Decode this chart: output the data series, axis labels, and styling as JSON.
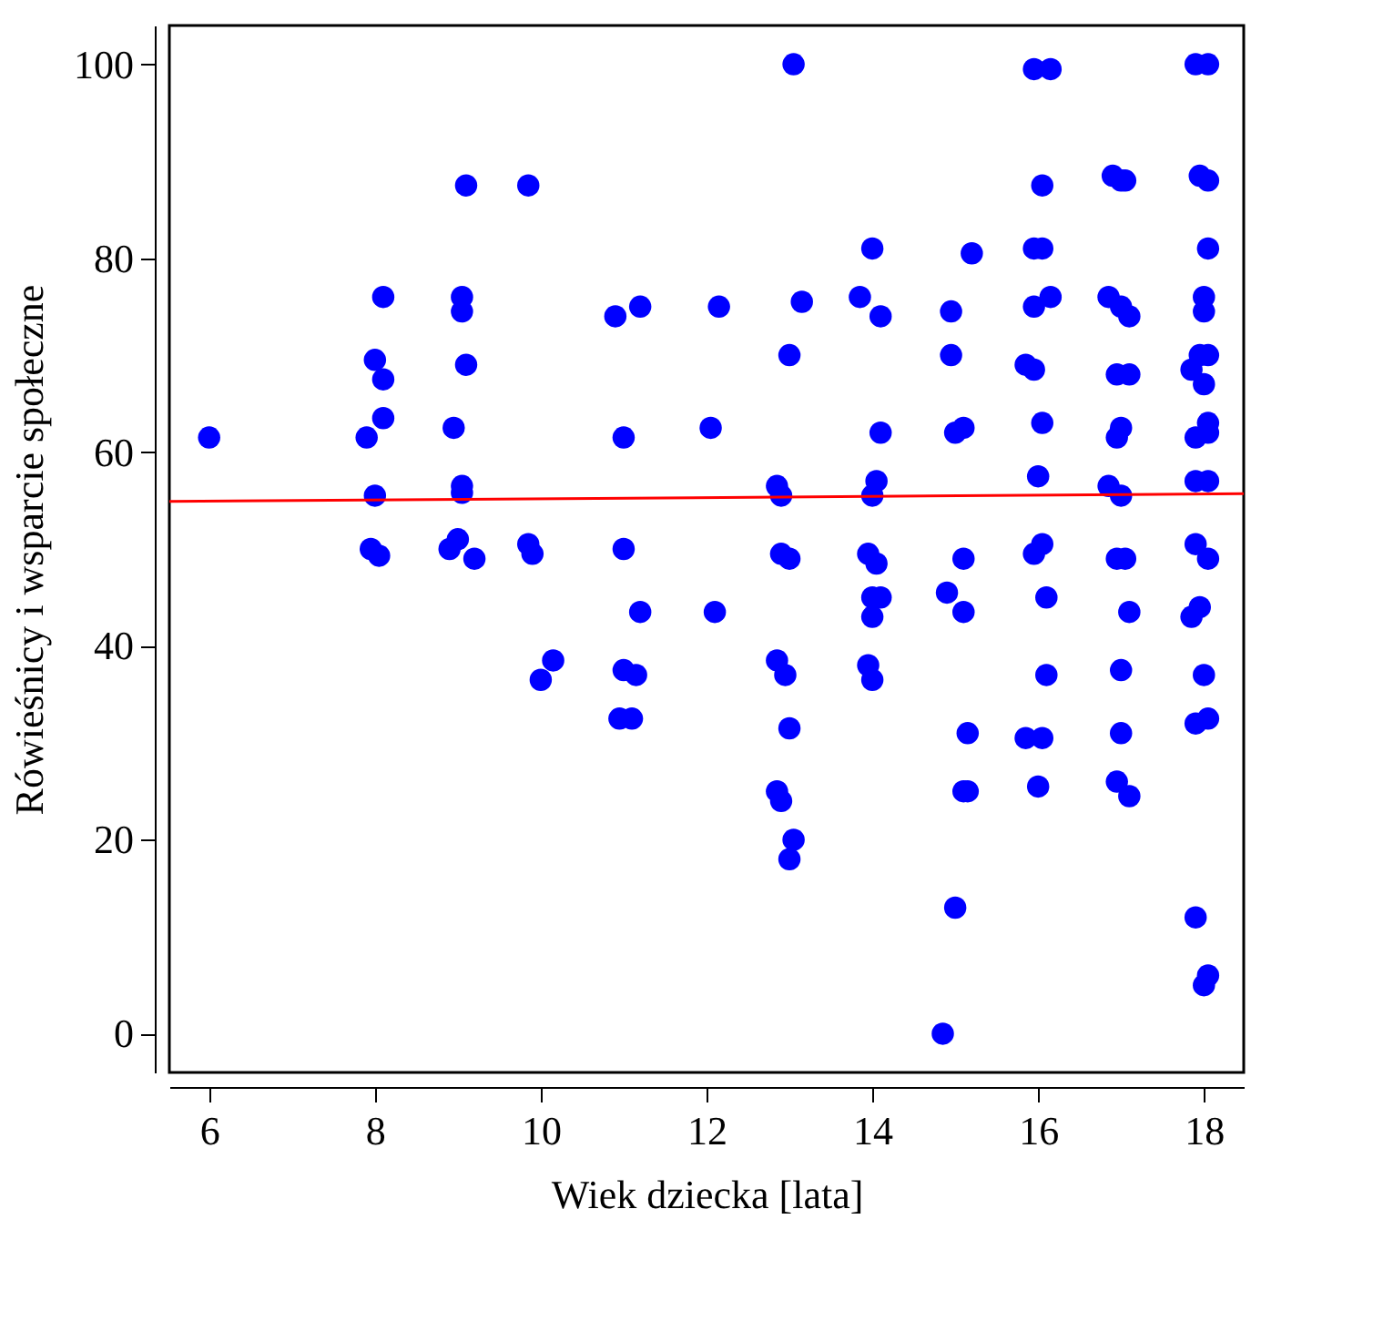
{
  "chart_data": {
    "type": "scatter",
    "xlabel": "Wiek dziecka [lata]",
    "ylabel": "Rówieśnicy i wsparcie społeczne",
    "xlim": [
      5.52,
      18.48
    ],
    "ylim": [
      -4,
      104
    ],
    "xticks": [
      6,
      8,
      10,
      12,
      14,
      16,
      18
    ],
    "yticks": [
      0,
      20,
      40,
      60,
      80,
      100
    ],
    "grid": false,
    "marker": "circle",
    "series": [
      {
        "color": "#0000ff",
        "x": [
          6,
          8.1,
          8.0,
          8.1,
          8.1,
          7.9,
          8.0,
          7.95,
          8.05,
          9.1,
          9.05,
          9.05,
          9.1,
          8.95,
          9.05,
          9.05,
          8.9,
          9.0,
          9.2,
          9.85,
          9.85,
          9.9,
          10.0,
          10.15,
          10.9,
          11.2,
          11.0,
          11.0,
          11.2,
          11.0,
          11.15,
          10.95,
          11.1,
          12.15,
          12.05,
          12.1,
          13.05,
          13.15,
          13.0,
          12.85,
          12.9,
          12.9,
          13.0,
          12.85,
          12.95,
          13.0,
          12.85,
          12.9,
          13.05,
          13.0,
          13.85,
          14.0,
          14.1,
          14.1,
          14.05,
          14.0,
          13.95,
          14.05,
          14.0,
          14.1,
          14.0,
          13.95,
          14.0,
          15.2,
          14.95,
          14.95,
          15.0,
          15.1,
          14.9,
          15.1,
          15.1,
          15.15,
          15.1,
          15.15,
          15.0,
          14.85,
          15.95,
          16.15,
          15.95,
          16.05,
          16.05,
          15.95,
          16.15,
          15.85,
          15.95,
          16.05,
          16.0,
          15.95,
          16.05,
          16.1,
          16.1,
          15.85,
          16.05,
          16.0,
          16.9,
          17.0,
          17.05,
          16.85,
          17.0,
          17.1,
          16.95,
          17.1,
          17.0,
          16.95,
          16.85,
          17.0,
          16.95,
          17.05,
          17.1,
          17.0,
          17.0,
          16.95,
          17.1,
          17.9,
          18.05,
          17.95,
          18.05,
          18.05,
          18.0,
          18.0,
          17.95,
          18.05,
          17.85,
          18.0,
          18.05,
          17.9,
          18.05,
          17.9,
          18.05,
          17.9,
          18.05,
          17.85,
          17.95,
          18.0,
          17.9,
          18.05,
          17.9,
          18.05,
          18.0
        ],
        "values": [
          61.5,
          76,
          69.5,
          67.5,
          63.5,
          61.5,
          55.5,
          50,
          49.3,
          87.5,
          76,
          74.5,
          69,
          62.5,
          56.5,
          55.8,
          50,
          51,
          49,
          87.5,
          50.5,
          49.5,
          36.5,
          38.5,
          74,
          75,
          61.5,
          50,
          43.5,
          37.5,
          37,
          32.5,
          32.5,
          75,
          62.5,
          43.5,
          100,
          75.5,
          70,
          56.5,
          55.5,
          49.5,
          49,
          38.5,
          37,
          31.5,
          25,
          24,
          20,
          18,
          76,
          81,
          74,
          62,
          57,
          55.5,
          49.5,
          48.5,
          45,
          45,
          43,
          38,
          36.5,
          80.5,
          74.5,
          70,
          62,
          62.5,
          45.5,
          49,
          43.5,
          31,
          25,
          25,
          13,
          0,
          99.5,
          99.5,
          81,
          81,
          87.5,
          75,
          76,
          69,
          68.5,
          63,
          57.5,
          49.5,
          50.5,
          45,
          37,
          30.5,
          30.5,
          25.5,
          88.5,
          88,
          88,
          76,
          75,
          74,
          68,
          68,
          62.5,
          61.5,
          56.5,
          55.5,
          49,
          49,
          43.5,
          37.5,
          31,
          26,
          24.5,
          100,
          100,
          88.5,
          88,
          81,
          76,
          74.5,
          70,
          70,
          68.5,
          67,
          63,
          61.5,
          62,
          57,
          57,
          50.5,
          49,
          43,
          44,
          37,
          32,
          32.5,
          12,
          6,
          5
        ]
      },
      {
        "type": "line",
        "color": "#ff0000",
        "marker": "none",
        "x": [
          5.52,
          18.48
        ],
        "values": [
          54.9,
          55.7
        ]
      }
    ]
  }
}
